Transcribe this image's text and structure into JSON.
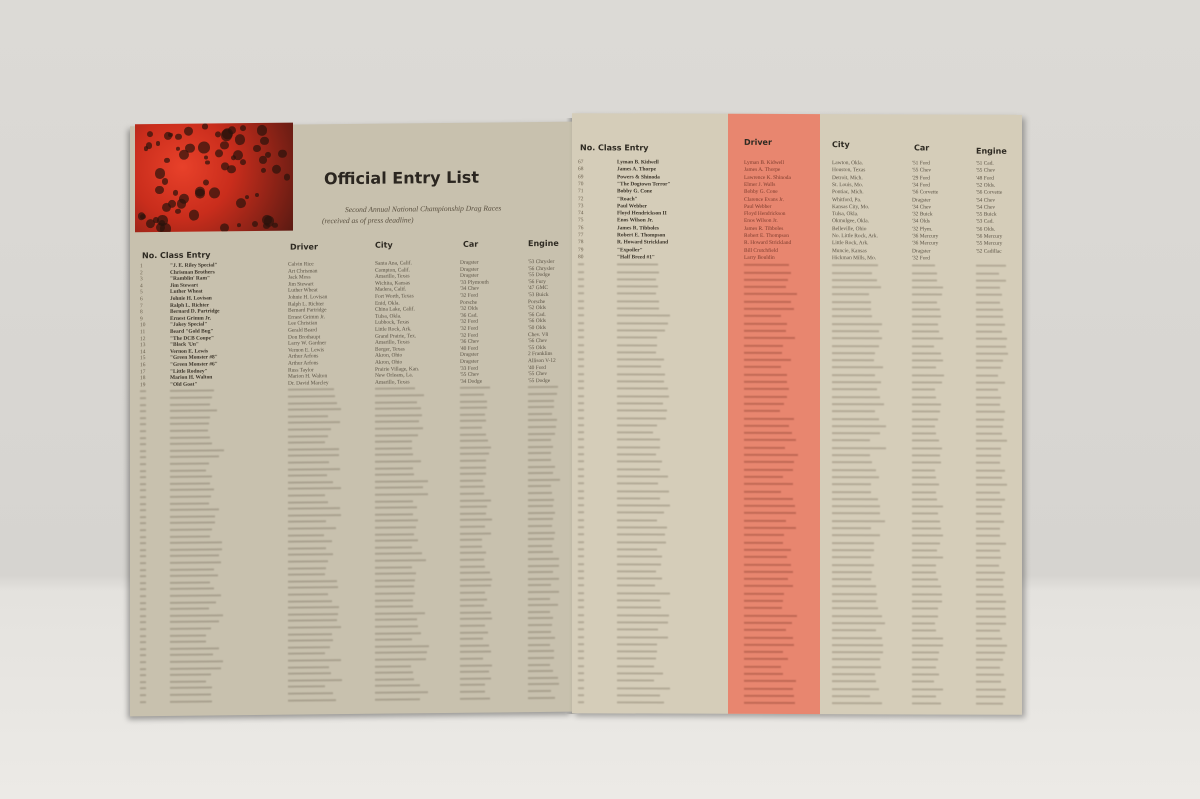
{
  "left_page": {
    "title": "Official Entry List",
    "subtitle": "Second Annual National Championship Drag Races",
    "note": "(received as of press deadline)",
    "headers": {
      "no_class_entry": "No. Class Entry",
      "driver": "Driver",
      "city": "City",
      "car": "Car",
      "engine": "Engine"
    },
    "rows": [
      {
        "no": "1",
        "entry": "\"J. E. Riley Special\"",
        "driver": "Calvin Rice",
        "city": "Santa Ana, Calif.",
        "car": "Dragster",
        "engine": "'53 Chrysler"
      },
      {
        "no": "2",
        "entry": "Chrisman Brothers",
        "driver": "Art Chrisman",
        "city": "Compton, Calif.",
        "car": "Dragster",
        "engine": "'56 Chrysler"
      },
      {
        "no": "3",
        "entry": "\"Ramblin' Ram\"",
        "driver": "Jack Moss",
        "city": "Amarillo, Texas",
        "car": "Dragster",
        "engine": "'55 Dodge"
      },
      {
        "no": "4",
        "entry": "Jim Stewart",
        "driver": "Jim Stewart",
        "city": "Wichita, Kansas",
        "car": "'33 Plymouth",
        "engine": "'56 Fury"
      },
      {
        "no": "5",
        "entry": "Luther Wheat",
        "driver": "Luther Wheat",
        "city": "Madera, Calif.",
        "car": "'34 Chev",
        "engine": "'47 GMC"
      },
      {
        "no": "6",
        "entry": "Johnie H. Lovisan",
        "driver": "Johnie H. Lovisan",
        "city": "Fort Worth, Texas",
        "car": "'32 Ford",
        "engine": "'53 Buick"
      },
      {
        "no": "7",
        "entry": "Ralph L. Richter",
        "driver": "Ralph L. Richter",
        "city": "Enid, Okla.",
        "car": "Porsche",
        "engine": "Porsche"
      },
      {
        "no": "8",
        "entry": "Bernard D. Partridge",
        "driver": "Bernard Partridge",
        "city": "China Lake, Calif.",
        "car": "'32 Olds",
        "engine": "'52 Olds"
      },
      {
        "no": "9",
        "entry": "Ernest Grimm Jr.",
        "driver": "Ernest Grimm Jr.",
        "city": "Tulsa, Okla.",
        "car": "'36 Cad.",
        "engine": "'56 Cad."
      },
      {
        "no": "10",
        "entry": "\"Jakey Special\"",
        "driver": "Lee Christian",
        "city": "Lubbock, Texas",
        "car": "'32 Ford",
        "engine": "'56 Olds"
      },
      {
        "no": "11",
        "entry": "Beard \"Gold Bug\"",
        "driver": "Gerald Beard",
        "city": "Little Rock, Ark.",
        "car": "'32 Ford",
        "engine": "'50 Olds"
      },
      {
        "no": "12",
        "entry": "\"The DCB Coupe\"",
        "driver": "Don Brothaupt",
        "city": "Grand Prairie, Tex.",
        "car": "'32 Ford",
        "engine": "Chev. V8"
      },
      {
        "no": "13",
        "entry": "\"Black 'Un\"",
        "driver": "Larry W. Gardner",
        "city": "Amarillo, Texas",
        "car": "'36 Chev",
        "engine": "'56 Chev"
      },
      {
        "no": "14",
        "entry": "Vernon E. Lewis",
        "driver": "Vernon E. Lewis",
        "city": "Borger, Texas",
        "car": "'40 Ford",
        "engine": "'55 Olds"
      },
      {
        "no": "15",
        "entry": "\"Green Monster #8\"",
        "driver": "Arthur Arfons",
        "city": "Akron, Ohio",
        "car": "Dragster",
        "engine": "2 Franklins"
      },
      {
        "no": "16",
        "entry": "\"Green Monster #6\"",
        "driver": "Arthur Arfons",
        "city": "Akron, Ohio",
        "car": "Dragster",
        "engine": "Allison V-12"
      },
      {
        "no": "17",
        "entry": "\"Little Rodney\"",
        "driver": "Russ Taylor",
        "city": "Prairie Village, Kan.",
        "car": "'33 Ford",
        "engine": "'40 Ford"
      },
      {
        "no": "18",
        "entry": "Marion H. Walton",
        "driver": "Marion H. Walton",
        "city": "New Orleans, La.",
        "car": "'55 Chev",
        "engine": "'55 Chev"
      },
      {
        "no": "19",
        "entry": "\"Old Goat\"",
        "driver": "Dr. David Marcley",
        "city": "Amarillo, Texas",
        "car": "'34 Dodge",
        "engine": "'55 Dodge"
      }
    ]
  },
  "right_page": {
    "headers": {
      "no_class_entry": "No. Class Entry",
      "driver": "Driver",
      "city": "City",
      "car": "Car",
      "engine": "Engine"
    },
    "rows": [
      {
        "no": "67",
        "entry": "Lyman B. Kidwell",
        "driver": "Lyman B. Kidwell",
        "city": "Lawton, Okla.",
        "car": "'51 Ford",
        "engine": "'51 Cad."
      },
      {
        "no": "68",
        "entry": "James A. Thorpe",
        "driver": "James A. Thorpe",
        "city": "Houston, Texas",
        "car": "'55 Chev",
        "engine": "'55 Chev"
      },
      {
        "no": "69",
        "entry": "Powers & Shinoda",
        "driver": "Lawrence K. Shinoda",
        "city": "Detroit, Mich.",
        "car": "'29 Ford",
        "engine": "'48 Ford"
      },
      {
        "no": "70",
        "entry": "\"The Dogtown Terror\"",
        "driver": "Elmer J. Walls",
        "city": "St. Louis, Mo.",
        "car": "'34 Ford",
        "engine": "'52 Olds."
      },
      {
        "no": "71",
        "entry": "Bobby G. Cone",
        "driver": "Bobby G. Cone",
        "city": "Pontiac, Mich.",
        "car": "'56 Corvette",
        "engine": "'56 Corvette"
      },
      {
        "no": "72",
        "entry": "\"Roach\"",
        "driver": "Clarence Evans Jr.",
        "city": "Whitford, Pa.",
        "car": "Dragster",
        "engine": "'54 Chev"
      },
      {
        "no": "73",
        "entry": "Paul Webber",
        "driver": "Paul Webber",
        "city": "Kansas City, Mo.",
        "car": "'34 Chev",
        "engine": "'54 Chev"
      },
      {
        "no": "74",
        "entry": "Floyd Hendrickson II",
        "driver": "Floyd Hendrickson",
        "city": "Tulsa, Okla.",
        "car": "'32 Buick",
        "engine": "'55 Buick"
      },
      {
        "no": "75",
        "entry": "Enos Wilson Jr.",
        "driver": "Enos Wilson Jr.",
        "city": "Okmulgee, Okla.",
        "car": "'34 Olds",
        "engine": "'53 Cad."
      },
      {
        "no": "76",
        "entry": "James R. Tibboles",
        "driver": "James R. Tibboles",
        "city": "Belleville, Ohio",
        "car": "'32 Plym.",
        "engine": "'56 Olds."
      },
      {
        "no": "77",
        "entry": "Robert E. Thompson",
        "driver": "Robert E. Thompson",
        "city": "No. Little Rock, Ark.",
        "car": "'36 Mercury",
        "engine": "'56 Mercury"
      },
      {
        "no": "78",
        "entry": "R. Howard Strickland",
        "driver": "R. Howard Strickland",
        "city": "Little Rock, Ark.",
        "car": "'36 Mercury",
        "engine": "'55 Mercury"
      },
      {
        "no": "79",
        "entry": "\"Expoiler\"",
        "driver": "Bill Crutchfield",
        "city": "Muncie, Kansas",
        "car": "Dragster",
        "engine": "'52 Cadillac"
      },
      {
        "no": "80",
        "entry": "\"Half Breed #1\"",
        "driver": "Larry Bouldin",
        "city": "Hickman Mills, Mo.",
        "car": "'32 Ford",
        "engine": ""
      }
    ]
  },
  "colors": {
    "left_paper": "#c8c1ae",
    "right_paper": "#d5cdb9",
    "driver_column_highlight": "#e8866f",
    "photo_tint": "#d8341f"
  }
}
